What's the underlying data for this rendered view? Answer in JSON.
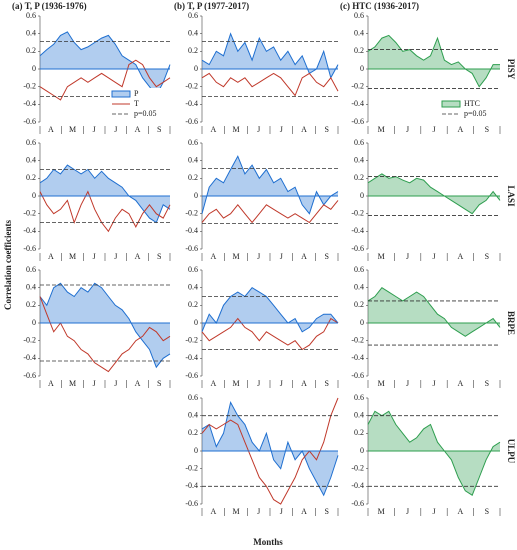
{
  "ylabel": "Correlation coefficients",
  "xlabel": "Months",
  "chart_data": [
    {
      "type": "line",
      "title": "(a)  T, P (1936-1976)",
      "xtick_labels": [
        "A",
        "M",
        "J",
        "J",
        "A",
        "S"
      ],
      "ylim": [
        -0.6,
        0.6
      ],
      "yticks": [
        -0.6,
        -0.4,
        -0.2,
        0,
        0.2,
        0.4,
        0.6
      ],
      "thresholds": [
        0.31,
        -0.31
      ],
      "legend": "lower right",
      "threshold_label": "p=0.05",
      "series": [
        {
          "name": "P",
          "color": "#1f6fd0",
          "fill": true,
          "values": [
            0.15,
            0.22,
            0.28,
            0.38,
            0.42,
            0.3,
            0.22,
            0.25,
            0.3,
            0.35,
            0.38,
            0.28,
            0.15,
            0.1,
            0.05,
            -0.1,
            -0.2,
            -0.3,
            -0.15,
            0.05
          ]
        },
        {
          "name": "T",
          "color": "#c0392b",
          "fill": false,
          "values": [
            -0.2,
            -0.25,
            -0.3,
            -0.35,
            -0.2,
            -0.15,
            -0.1,
            -0.15,
            -0.1,
            -0.05,
            -0.1,
            -0.15,
            -0.2,
            0.05,
            0.1,
            0.05,
            -0.1,
            -0.2,
            -0.15,
            -0.1
          ]
        }
      ]
    },
    {
      "type": "line",
      "xtick_labels": [
        "A",
        "M",
        "J",
        "J",
        "A",
        "S"
      ],
      "ylim": [
        -0.6,
        0.6
      ],
      "yticks": [
        -0.6,
        -0.4,
        -0.2,
        0,
        0.2,
        0.4,
        0.6
      ],
      "thresholds": [
        0.3,
        -0.3
      ],
      "series": [
        {
          "color": "#1f6fd0",
          "fill": true,
          "values": [
            0.15,
            0.2,
            0.3,
            0.25,
            0.35,
            0.3,
            0.25,
            0.3,
            0.2,
            0.28,
            0.2,
            0.15,
            0.1,
            0,
            -0.05,
            -0.15,
            -0.25,
            -0.3,
            -0.1,
            -0.15
          ]
        },
        {
          "color": "#c0392b",
          "fill": false,
          "values": [
            0.05,
            -0.1,
            -0.2,
            -0.15,
            -0.05,
            -0.3,
            -0.1,
            0.05,
            -0.15,
            -0.3,
            -0.4,
            -0.25,
            -0.15,
            -0.2,
            -0.35,
            -0.2,
            -0.1,
            -0.2,
            -0.25,
            -0.1
          ]
        }
      ]
    },
    {
      "type": "line",
      "xtick_labels": [
        "A",
        "M",
        "J",
        "J",
        "A",
        "S"
      ],
      "ylim": [
        -0.6,
        0.6
      ],
      "yticks": [
        -0.6,
        -0.4,
        -0.2,
        0,
        0.2,
        0.4,
        0.6
      ],
      "thresholds": [
        0.43,
        -0.43
      ],
      "series": [
        {
          "color": "#1f6fd0",
          "fill": true,
          "values": [
            0.3,
            0.2,
            0.4,
            0.45,
            0.35,
            0.3,
            0.4,
            0.35,
            0.45,
            0.4,
            0.3,
            0.2,
            0.15,
            0.05,
            -0.1,
            -0.2,
            -0.3,
            -0.5,
            -0.4,
            -0.35
          ]
        },
        {
          "color": "#c0392b",
          "fill": false,
          "values": [
            0.3,
            0.1,
            -0.1,
            0,
            -0.15,
            -0.2,
            -0.3,
            -0.35,
            -0.45,
            -0.5,
            -0.55,
            -0.45,
            -0.35,
            -0.3,
            -0.2,
            -0.15,
            -0.05,
            -0.1,
            -0.2,
            -0.15
          ]
        }
      ]
    },
    {
      "type": "line",
      "title": "(b)  T, P (1977-2017)",
      "xtick_labels": [
        "A",
        "M",
        "J",
        "J",
        "A",
        "S"
      ],
      "ylim": [
        -0.6,
        0.6
      ],
      "yticks": [
        -0.6,
        -0.4,
        -0.2,
        0,
        0.2,
        0.4,
        0.6
      ],
      "thresholds": [
        0.31,
        -0.31
      ],
      "series": [
        {
          "color": "#1f6fd0",
          "fill": true,
          "values": [
            0.1,
            0.05,
            0.2,
            0.15,
            0.4,
            0.2,
            0.3,
            0.1,
            0.35,
            0.2,
            0.25,
            0.1,
            0.2,
            0.05,
            0.15,
            -0.05,
            0,
            0.2,
            -0.1,
            0.05
          ]
        },
        {
          "color": "#c0392b",
          "fill": false,
          "values": [
            -0.1,
            -0.05,
            -0.15,
            -0.2,
            -0.1,
            -0.15,
            -0.1,
            -0.2,
            -0.15,
            -0.1,
            -0.05,
            -0.1,
            -0.2,
            -0.3,
            -0.1,
            -0.05,
            -0.15,
            -0.2,
            -0.1,
            -0.25
          ]
        }
      ]
    },
    {
      "type": "line",
      "xtick_labels": [
        "A",
        "M",
        "J",
        "J",
        "A",
        "S"
      ],
      "ylim": [
        -0.6,
        0.6
      ],
      "yticks": [
        -0.6,
        -0.4,
        -0.2,
        0,
        0.2,
        0.4,
        0.6
      ],
      "thresholds": [
        0.31,
        -0.31
      ],
      "series": [
        {
          "color": "#1f6fd0",
          "fill": true,
          "values": [
            -0.2,
            0.1,
            0.2,
            0.15,
            0.3,
            0.45,
            0.25,
            0.35,
            0.2,
            0.3,
            0.15,
            0.2,
            0.05,
            0.1,
            -0.1,
            -0.2,
            0.05,
            -0.1,
            0,
            0.05
          ]
        },
        {
          "color": "#c0392b",
          "fill": false,
          "values": [
            -0.3,
            -0.2,
            -0.15,
            -0.25,
            -0.2,
            -0.1,
            -0.2,
            -0.3,
            -0.2,
            -0.1,
            -0.15,
            -0.2,
            -0.25,
            -0.2,
            -0.25,
            -0.3,
            -0.2,
            -0.1,
            -0.15,
            -0.05
          ]
        }
      ]
    },
    {
      "type": "line",
      "xtick_labels": [
        "A",
        "M",
        "J",
        "J",
        "A",
        "S"
      ],
      "ylim": [
        -0.6,
        0.6
      ],
      "yticks": [
        -0.6,
        -0.4,
        -0.2,
        0,
        0.2,
        0.4,
        0.6
      ],
      "thresholds": [
        0.3,
        -0.3
      ],
      "series": [
        {
          "color": "#1f6fd0",
          "fill": true,
          "values": [
            -0.1,
            0.1,
            0,
            0.2,
            0.3,
            0.35,
            0.3,
            0.4,
            0.35,
            0.3,
            0.2,
            0.1,
            0,
            0.05,
            -0.1,
            -0.05,
            0.05,
            0.1,
            0.1,
            0
          ]
        },
        {
          "color": "#c0392b",
          "fill": false,
          "values": [
            -0.1,
            -0.2,
            -0.15,
            -0.1,
            -0.05,
            0.05,
            -0.05,
            -0.1,
            -0.2,
            -0.1,
            -0.15,
            -0.2,
            -0.25,
            -0.2,
            -0.3,
            -0.25,
            -0.15,
            -0.1,
            0.05,
            0
          ]
        }
      ]
    },
    {
      "type": "line",
      "xtick_labels": [
        "A",
        "M",
        "J",
        "J",
        "A",
        "S"
      ],
      "ylim": [
        -0.6,
        0.6
      ],
      "yticks": [
        -0.6,
        -0.4,
        -0.2,
        0,
        0.2,
        0.4,
        0.6
      ],
      "thresholds": [
        0.4,
        -0.4
      ],
      "series": [
        {
          "color": "#1f6fd0",
          "fill": true,
          "values": [
            0.25,
            0.3,
            0.05,
            0.2,
            0.55,
            0.4,
            0.3,
            0.1,
            0,
            0.2,
            -0.1,
            -0.2,
            0.1,
            -0.1,
            0,
            -0.2,
            -0.35,
            -0.5,
            -0.3,
            -0.05
          ]
        },
        {
          "color": "#c0392b",
          "fill": false,
          "values": [
            0.2,
            0.3,
            0.25,
            0.3,
            0.35,
            0.3,
            0.1,
            -0.1,
            -0.3,
            -0.4,
            -0.55,
            -0.6,
            -0.45,
            -0.3,
            -0.1,
            0,
            -0.1,
            0.1,
            0.4,
            0.6
          ]
        }
      ]
    },
    {
      "type": "line",
      "title": "(c)  HTC (1936-2017)",
      "site": "PISY",
      "xtick_labels": [
        "M",
        "J",
        "J",
        "A",
        "S"
      ],
      "ylim": [
        -0.6,
        0.6
      ],
      "yticks": [
        -0.6,
        -0.4,
        -0.2,
        0,
        0.2,
        0.4,
        0.6
      ],
      "thresholds": [
        0.22,
        -0.22
      ],
      "legend": "lower right",
      "threshold_label": "p=0.05",
      "series": [
        {
          "name": "HTC",
          "color": "#2e9e4f",
          "fill": true,
          "values": [
            0.2,
            0.25,
            0.35,
            0.38,
            0.3,
            0.2,
            0.22,
            0.15,
            0.1,
            0.15,
            0.35,
            0.1,
            0.05,
            0.08,
            0,
            -0.05,
            -0.2,
            -0.1,
            0.05,
            0.05
          ]
        }
      ]
    },
    {
      "type": "line",
      "site": "LASI",
      "xtick_labels": [
        "M",
        "J",
        "J",
        "A",
        "S"
      ],
      "ylim": [
        -0.6,
        0.6
      ],
      "yticks": [
        -0.6,
        -0.4,
        -0.2,
        0,
        0.2,
        0.4,
        0.6
      ],
      "thresholds": [
        0.22,
        -0.22
      ],
      "series": [
        {
          "color": "#2e9e4f",
          "fill": true,
          "values": [
            0.15,
            0.2,
            0.25,
            0.2,
            0.22,
            0.18,
            0.15,
            0.2,
            0.18,
            0.1,
            0.05,
            0,
            -0.05,
            -0.1,
            -0.15,
            -0.2,
            -0.1,
            -0.05,
            0.05,
            -0.05
          ]
        }
      ]
    },
    {
      "type": "line",
      "site": "BRPE",
      "xtick_labels": [
        "M",
        "J",
        "J",
        "A",
        "S"
      ],
      "ylim": [
        -0.6,
        0.6
      ],
      "yticks": [
        -0.6,
        -0.4,
        -0.2,
        0,
        0.2,
        0.4,
        0.6
      ],
      "thresholds": [
        0.25,
        -0.25
      ],
      "series": [
        {
          "color": "#2e9e4f",
          "fill": true,
          "values": [
            0.25,
            0.3,
            0.4,
            0.35,
            0.3,
            0.25,
            0.3,
            0.35,
            0.3,
            0.2,
            0.1,
            0.05,
            -0.05,
            -0.1,
            -0.15,
            -0.1,
            -0.05,
            0,
            0.05,
            -0.05
          ]
        }
      ]
    },
    {
      "type": "line",
      "site": "ULPU",
      "xtick_labels": [
        "M",
        "J",
        "J",
        "A",
        "S"
      ],
      "ylim": [
        -0.6,
        0.6
      ],
      "yticks": [
        -0.6,
        -0.4,
        -0.2,
        0,
        0.2,
        0.4,
        0.6
      ],
      "thresholds": [
        0.4,
        -0.4
      ],
      "series": [
        {
          "color": "#2e9e4f",
          "fill": true,
          "values": [
            0.3,
            0.45,
            0.4,
            0.45,
            0.3,
            0.2,
            0.1,
            0.15,
            0.25,
            0.3,
            0.1,
            0,
            -0.1,
            -0.3,
            -0.45,
            -0.5,
            -0.3,
            -0.1,
            0.05,
            0.1
          ]
        }
      ]
    }
  ]
}
